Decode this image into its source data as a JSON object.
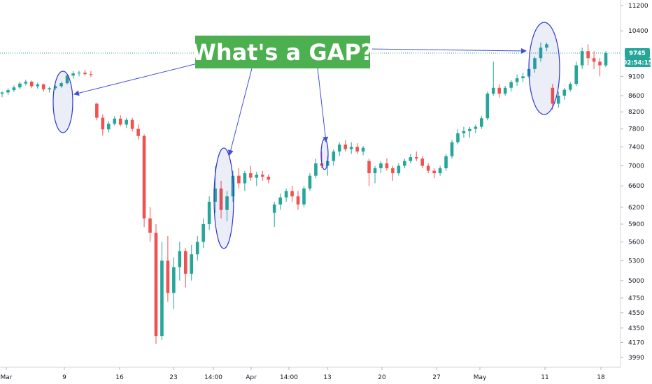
{
  "chart_data": {
    "type": "candlestick",
    "title": "What's a GAP?",
    "y_scale": "log",
    "ylim": [
      3800,
      11600
    ],
    "y_ticks": [
      "11200",
      "10400",
      "9745",
      "9100",
      "8600",
      "8200",
      "7800",
      "7400",
      "7000",
      "6600",
      "6200",
      "5900",
      "5600",
      "5300",
      "5000",
      "4750",
      "4550",
      "4350",
      "4170",
      "3990"
    ],
    "x_ticks": [
      "Mar",
      "9",
      "16",
      "23",
      "14:00",
      "Apr",
      "14:00",
      "13",
      "20",
      "27",
      "May",
      "11",
      "18"
    ],
    "last_price": "9745",
    "countdown": "02:54:15",
    "highlighted_gaps": [
      "gap-1",
      "gap-2",
      "gap-3",
      "gap-4"
    ],
    "candles": [
      [
        8650,
        8710,
        8560,
        8680
      ],
      [
        8680,
        8790,
        8620,
        8740
      ],
      [
        8740,
        8860,
        8690,
        8810
      ],
      [
        8810,
        8960,
        8760,
        8910
      ],
      [
        8910,
        9010,
        8860,
        8960
      ],
      [
        8960,
        8990,
        8790,
        8840
      ],
      [
        8840,
        8930,
        8780,
        8890
      ],
      [
        8890,
        8910,
        8700,
        8760
      ],
      [
        8760,
        8830,
        8680,
        8790
      ],
      [
        8790,
        8880,
        8740,
        8840
      ],
      [
        8840,
        8960,
        8800,
        8920
      ],
      [
        8920,
        9160,
        8890,
        9120
      ],
      [
        9120,
        9240,
        9040,
        9180
      ],
      [
        9180,
        9250,
        9100,
        9200
      ],
      [
        9200,
        9280,
        9120,
        9160
      ],
      [
        9160,
        9240,
        9080,
        9140
      ],
      [
        8400,
        8420,
        8000,
        8060
      ],
      [
        8060,
        8140,
        7650,
        7790
      ],
      [
        7790,
        7980,
        7720,
        7920
      ],
      [
        7920,
        8100,
        7880,
        8040
      ],
      [
        8040,
        8120,
        7860,
        7900
      ],
      [
        7900,
        8060,
        7820,
        8010
      ],
      [
        8010,
        8060,
        7740,
        7800
      ],
      [
        7800,
        7900,
        7560,
        7640
      ],
      [
        7640,
        7680,
        5850,
        6000
      ],
      [
        6000,
        6200,
        5600,
        5750
      ],
      [
        5750,
        5900,
        4150,
        4250
      ],
      [
        4250,
        5600,
        4200,
        5300
      ],
      [
        5300,
        5700,
        4700,
        4820
      ],
      [
        4820,
        5350,
        4600,
        5200
      ],
      [
        5200,
        5600,
        5000,
        5450
      ],
      [
        5450,
        5500,
        4900,
        5100
      ],
      [
        5100,
        5550,
        5000,
        5400
      ],
      [
        5400,
        5700,
        5300,
        5600
      ],
      [
        5600,
        6000,
        5500,
        5900
      ],
      [
        5900,
        6400,
        5800,
        6300
      ],
      [
        6300,
        7000,
        6100,
        6550
      ],
      [
        6550,
        6700,
        6000,
        6150
      ],
      [
        6150,
        6500,
        5950,
        6400
      ],
      [
        6400,
        6900,
        6300,
        6800
      ],
      [
        6800,
        6950,
        6550,
        6650
      ],
      [
        6650,
        6900,
        6500,
        6850
      ],
      [
        6850,
        7000,
        6700,
        6760
      ],
      [
        6760,
        6880,
        6600,
        6820
      ],
      [
        6820,
        6900,
        6700,
        6780
      ],
      [
        6780,
        6830,
        6650,
        6720
      ],
      [
        6100,
        6300,
        5850,
        6250
      ],
      [
        6250,
        6450,
        6150,
        6380
      ],
      [
        6380,
        6550,
        6300,
        6500
      ],
      [
        6500,
        6600,
        6300,
        6400
      ],
      [
        6400,
        6500,
        6150,
        6250
      ],
      [
        6250,
        6600,
        6200,
        6550
      ],
      [
        6550,
        6850,
        6500,
        6800
      ],
      [
        6800,
        7150,
        6750,
        7050
      ],
      [
        7050,
        7300,
        6950,
        7000
      ],
      [
        7000,
        7200,
        6800,
        7100
      ],
      [
        7100,
        7350,
        7000,
        7300
      ],
      [
        7300,
        7500,
        7200,
        7450
      ],
      [
        7450,
        7550,
        7300,
        7350
      ],
      [
        7350,
        7500,
        7250,
        7400
      ],
      [
        7400,
        7480,
        7250,
        7300
      ],
      [
        7300,
        7420,
        7220,
        7380
      ],
      [
        7100,
        7150,
        6600,
        6850
      ],
      [
        6850,
        7000,
        6650,
        6950
      ],
      [
        6950,
        7100,
        6850,
        7050
      ],
      [
        7050,
        7150,
        6900,
        6950
      ],
      [
        6950,
        7000,
        6700,
        6850
      ],
      [
        6850,
        7050,
        6800,
        7000
      ],
      [
        7000,
        7150,
        6950,
        7100
      ],
      [
        7100,
        7250,
        7050,
        7180
      ],
      [
        7180,
        7300,
        7100,
        7150
      ],
      [
        7150,
        7200,
        6950,
        7000
      ],
      [
        7000,
        7050,
        6850,
        6900
      ],
      [
        6900,
        6950,
        6750,
        6850
      ],
      [
        6850,
        7000,
        6800,
        6950
      ],
      [
        6950,
        7250,
        6900,
        7200
      ],
      [
        7200,
        7550,
        7150,
        7500
      ],
      [
        7500,
        7800,
        7450,
        7700
      ],
      [
        7700,
        7850,
        7600,
        7750
      ],
      [
        7750,
        7850,
        7600,
        7800
      ],
      [
        7800,
        7900,
        7700,
        7850
      ],
      [
        7850,
        8100,
        7800,
        8050
      ],
      [
        8050,
        8700,
        8000,
        8650
      ],
      [
        8650,
        9500,
        8600,
        8800
      ],
      [
        8800,
        8900,
        8550,
        8650
      ],
      [
        8650,
        8850,
        8600,
        8800
      ],
      [
        8800,
        9000,
        8700,
        8950
      ],
      [
        8950,
        9150,
        8850,
        9050
      ],
      [
        9050,
        9200,
        8950,
        9100
      ],
      [
        9100,
        9350,
        9050,
        9300
      ],
      [
        9300,
        9650,
        9200,
        9600
      ],
      [
        9600,
        10050,
        9500,
        9900
      ],
      [
        9900,
        10050,
        9800,
        10000
      ],
      [
        8800,
        8900,
        8250,
        8400
      ],
      [
        8400,
        8700,
        8300,
        8600
      ],
      [
        8600,
        8800,
        8500,
        8750
      ],
      [
        8750,
        8950,
        8700,
        8900
      ],
      [
        8900,
        9500,
        8850,
        9400
      ],
      [
        9400,
        9900,
        9300,
        9800
      ],
      [
        9800,
        10000,
        9400,
        9600
      ],
      [
        9600,
        9800,
        9300,
        9500
      ],
      [
        9500,
        9600,
        9100,
        9400
      ],
      [
        9400,
        9800,
        9350,
        9745
      ]
    ]
  }
}
